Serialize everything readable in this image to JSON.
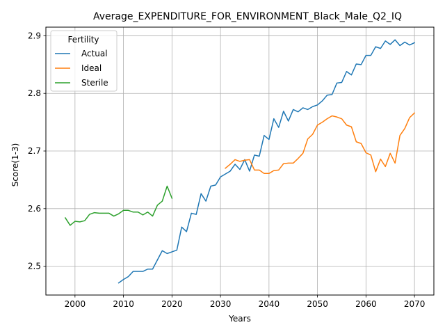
{
  "chart_data": {
    "type": "line",
    "title": "Average_EXPENDITURE_FOR_ENVIRONMENT_Black_Male_Q2_IQ",
    "xlabel": "Years",
    "ylabel": "Score(1-3)",
    "xlim": [
      1994,
      2074
    ],
    "ylim": [
      2.45,
      2.915
    ],
    "xticks": [
      2000,
      2010,
      2020,
      2030,
      2040,
      2050,
      2060,
      2070
    ],
    "yticks": [
      2.5,
      2.6,
      2.7,
      2.8,
      2.9
    ],
    "ytick_labels": [
      "2.5",
      "2.6",
      "2.7",
      "2.8",
      "2.9"
    ],
    "grid": true,
    "legend": {
      "title": "Fertility",
      "placement": "upper-left"
    },
    "series": [
      {
        "name": "Actual",
        "color": "#1f77b4",
        "x": [
          2009,
          2010,
          2011,
          2012,
          2013,
          2014,
          2015,
          2016,
          2017,
          2018,
          2019,
          2020,
          2021,
          2022,
          2023,
          2024,
          2025,
          2026,
          2027,
          2028,
          2029,
          2030,
          2031,
          2032,
          2033,
          2034,
          2035,
          2036,
          2037,
          2038,
          2039,
          2040,
          2041,
          2042,
          2043,
          2044,
          2045,
          2046,
          2047,
          2048,
          2049,
          2050,
          2051,
          2052,
          2053,
          2054,
          2055,
          2056,
          2057,
          2058,
          2059,
          2060,
          2061,
          2062,
          2063,
          2064,
          2065,
          2066,
          2067,
          2068,
          2069,
          2070
        ],
        "y": [
          2.471,
          2.477,
          2.482,
          2.491,
          2.491,
          2.491,
          2.495,
          2.495,
          2.511,
          2.527,
          2.522,
          2.525,
          2.528,
          2.568,
          2.56,
          2.592,
          2.59,
          2.626,
          2.613,
          2.639,
          2.641,
          2.655,
          2.66,
          2.665,
          2.677,
          2.668,
          2.685,
          2.665,
          2.693,
          2.691,
          2.727,
          2.72,
          2.756,
          2.741,
          2.769,
          2.752,
          2.772,
          2.768,
          2.775,
          2.772,
          2.777,
          2.78,
          2.787,
          2.797,
          2.798,
          2.818,
          2.819,
          2.838,
          2.832,
          2.851,
          2.85,
          2.866,
          2.866,
          2.881,
          2.878,
          2.891,
          2.885,
          2.893,
          2.883,
          2.889,
          2.884,
          2.888
        ]
      },
      {
        "name": "Ideal",
        "color": "#ff7f0e",
        "x": [
          2031,
          2032,
          2033,
          2034,
          2035,
          2036,
          2037,
          2038,
          2039,
          2040,
          2041,
          2042,
          2043,
          2044,
          2045,
          2046,
          2047,
          2048,
          2049,
          2050,
          2051,
          2052,
          2053,
          2054,
          2055,
          2056,
          2057,
          2058,
          2059,
          2060,
          2061,
          2062,
          2063,
          2064,
          2065,
          2066,
          2067,
          2068,
          2069,
          2070
        ],
        "y": [
          2.67,
          2.677,
          2.685,
          2.682,
          2.684,
          2.685,
          2.667,
          2.667,
          2.661,
          2.661,
          2.666,
          2.667,
          2.678,
          2.679,
          2.679,
          2.687,
          2.696,
          2.721,
          2.729,
          2.745,
          2.75,
          2.756,
          2.761,
          2.759,
          2.756,
          2.745,
          2.742,
          2.716,
          2.713,
          2.697,
          2.693,
          2.664,
          2.686,
          2.673,
          2.696,
          2.679,
          2.727,
          2.739,
          2.758,
          2.766
        ]
      },
      {
        "name": "Sterile",
        "color": "#2ca02c",
        "x": [
          1998,
          1999,
          2000,
          2001,
          2002,
          2003,
          2004,
          2005,
          2006,
          2007,
          2008,
          2009,
          2010,
          2011,
          2012,
          2013,
          2014,
          2015,
          2016,
          2017,
          2018,
          2019,
          2020
        ],
        "y": [
          2.584,
          2.571,
          2.578,
          2.577,
          2.579,
          2.59,
          2.593,
          2.592,
          2.592,
          2.592,
          2.587,
          2.591,
          2.597,
          2.597,
          2.594,
          2.594,
          2.589,
          2.594,
          2.587,
          2.606,
          2.613,
          2.639,
          2.618
        ]
      }
    ]
  }
}
